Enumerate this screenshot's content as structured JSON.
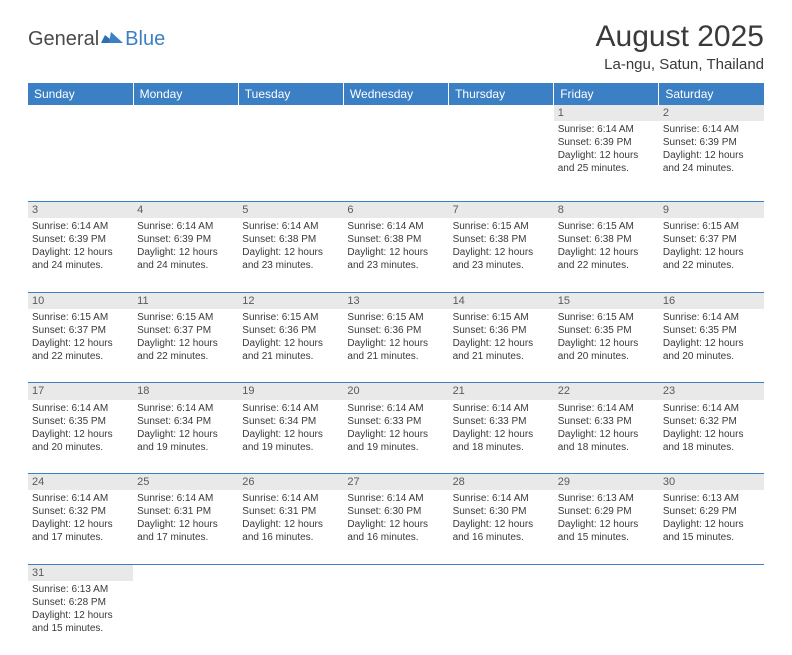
{
  "logo": {
    "general": "General",
    "blue": "Blue"
  },
  "title": "August 2025",
  "subtitle": "La-ngu, Satun, Thailand",
  "weekdays": [
    "Sunday",
    "Monday",
    "Tuesday",
    "Wednesday",
    "Thursday",
    "Friday",
    "Saturday"
  ],
  "weeks": [
    {
      "nums": [
        "",
        "",
        "",
        "",
        "",
        "1",
        "2"
      ],
      "cells": [
        null,
        null,
        null,
        null,
        null,
        {
          "sr": "Sunrise: 6:14 AM",
          "ss": "Sunset: 6:39 PM",
          "d1": "Daylight: 12 hours",
          "d2": "and 25 minutes."
        },
        {
          "sr": "Sunrise: 6:14 AM",
          "ss": "Sunset: 6:39 PM",
          "d1": "Daylight: 12 hours",
          "d2": "and 24 minutes."
        }
      ]
    },
    {
      "nums": [
        "3",
        "4",
        "5",
        "6",
        "7",
        "8",
        "9"
      ],
      "cells": [
        {
          "sr": "Sunrise: 6:14 AM",
          "ss": "Sunset: 6:39 PM",
          "d1": "Daylight: 12 hours",
          "d2": "and 24 minutes."
        },
        {
          "sr": "Sunrise: 6:14 AM",
          "ss": "Sunset: 6:39 PM",
          "d1": "Daylight: 12 hours",
          "d2": "and 24 minutes."
        },
        {
          "sr": "Sunrise: 6:14 AM",
          "ss": "Sunset: 6:38 PM",
          "d1": "Daylight: 12 hours",
          "d2": "and 23 minutes."
        },
        {
          "sr": "Sunrise: 6:14 AM",
          "ss": "Sunset: 6:38 PM",
          "d1": "Daylight: 12 hours",
          "d2": "and 23 minutes."
        },
        {
          "sr": "Sunrise: 6:15 AM",
          "ss": "Sunset: 6:38 PM",
          "d1": "Daylight: 12 hours",
          "d2": "and 23 minutes."
        },
        {
          "sr": "Sunrise: 6:15 AM",
          "ss": "Sunset: 6:38 PM",
          "d1": "Daylight: 12 hours",
          "d2": "and 22 minutes."
        },
        {
          "sr": "Sunrise: 6:15 AM",
          "ss": "Sunset: 6:37 PM",
          "d1": "Daylight: 12 hours",
          "d2": "and 22 minutes."
        }
      ]
    },
    {
      "nums": [
        "10",
        "11",
        "12",
        "13",
        "14",
        "15",
        "16"
      ],
      "cells": [
        {
          "sr": "Sunrise: 6:15 AM",
          "ss": "Sunset: 6:37 PM",
          "d1": "Daylight: 12 hours",
          "d2": "and 22 minutes."
        },
        {
          "sr": "Sunrise: 6:15 AM",
          "ss": "Sunset: 6:37 PM",
          "d1": "Daylight: 12 hours",
          "d2": "and 22 minutes."
        },
        {
          "sr": "Sunrise: 6:15 AM",
          "ss": "Sunset: 6:36 PM",
          "d1": "Daylight: 12 hours",
          "d2": "and 21 minutes."
        },
        {
          "sr": "Sunrise: 6:15 AM",
          "ss": "Sunset: 6:36 PM",
          "d1": "Daylight: 12 hours",
          "d2": "and 21 minutes."
        },
        {
          "sr": "Sunrise: 6:15 AM",
          "ss": "Sunset: 6:36 PM",
          "d1": "Daylight: 12 hours",
          "d2": "and 21 minutes."
        },
        {
          "sr": "Sunrise: 6:15 AM",
          "ss": "Sunset: 6:35 PM",
          "d1": "Daylight: 12 hours",
          "d2": "and 20 minutes."
        },
        {
          "sr": "Sunrise: 6:14 AM",
          "ss": "Sunset: 6:35 PM",
          "d1": "Daylight: 12 hours",
          "d2": "and 20 minutes."
        }
      ]
    },
    {
      "nums": [
        "17",
        "18",
        "19",
        "20",
        "21",
        "22",
        "23"
      ],
      "cells": [
        {
          "sr": "Sunrise: 6:14 AM",
          "ss": "Sunset: 6:35 PM",
          "d1": "Daylight: 12 hours",
          "d2": "and 20 minutes."
        },
        {
          "sr": "Sunrise: 6:14 AM",
          "ss": "Sunset: 6:34 PM",
          "d1": "Daylight: 12 hours",
          "d2": "and 19 minutes."
        },
        {
          "sr": "Sunrise: 6:14 AM",
          "ss": "Sunset: 6:34 PM",
          "d1": "Daylight: 12 hours",
          "d2": "and 19 minutes."
        },
        {
          "sr": "Sunrise: 6:14 AM",
          "ss": "Sunset: 6:33 PM",
          "d1": "Daylight: 12 hours",
          "d2": "and 19 minutes."
        },
        {
          "sr": "Sunrise: 6:14 AM",
          "ss": "Sunset: 6:33 PM",
          "d1": "Daylight: 12 hours",
          "d2": "and 18 minutes."
        },
        {
          "sr": "Sunrise: 6:14 AM",
          "ss": "Sunset: 6:33 PM",
          "d1": "Daylight: 12 hours",
          "d2": "and 18 minutes."
        },
        {
          "sr": "Sunrise: 6:14 AM",
          "ss": "Sunset: 6:32 PM",
          "d1": "Daylight: 12 hours",
          "d2": "and 18 minutes."
        }
      ]
    },
    {
      "nums": [
        "24",
        "25",
        "26",
        "27",
        "28",
        "29",
        "30"
      ],
      "cells": [
        {
          "sr": "Sunrise: 6:14 AM",
          "ss": "Sunset: 6:32 PM",
          "d1": "Daylight: 12 hours",
          "d2": "and 17 minutes."
        },
        {
          "sr": "Sunrise: 6:14 AM",
          "ss": "Sunset: 6:31 PM",
          "d1": "Daylight: 12 hours",
          "d2": "and 17 minutes."
        },
        {
          "sr": "Sunrise: 6:14 AM",
          "ss": "Sunset: 6:31 PM",
          "d1": "Daylight: 12 hours",
          "d2": "and 16 minutes."
        },
        {
          "sr": "Sunrise: 6:14 AM",
          "ss": "Sunset: 6:30 PM",
          "d1": "Daylight: 12 hours",
          "d2": "and 16 minutes."
        },
        {
          "sr": "Sunrise: 6:14 AM",
          "ss": "Sunset: 6:30 PM",
          "d1": "Daylight: 12 hours",
          "d2": "and 16 minutes."
        },
        {
          "sr": "Sunrise: 6:13 AM",
          "ss": "Sunset: 6:29 PM",
          "d1": "Daylight: 12 hours",
          "d2": "and 15 minutes."
        },
        {
          "sr": "Sunrise: 6:13 AM",
          "ss": "Sunset: 6:29 PM",
          "d1": "Daylight: 12 hours",
          "d2": "and 15 minutes."
        }
      ]
    },
    {
      "nums": [
        "31",
        "",
        "",
        "",
        "",
        "",
        ""
      ],
      "cells": [
        {
          "sr": "Sunrise: 6:13 AM",
          "ss": "Sunset: 6:28 PM",
          "d1": "Daylight: 12 hours",
          "d2": "and 15 minutes."
        },
        null,
        null,
        null,
        null,
        null,
        null
      ]
    }
  ],
  "colors": {
    "header_bg": "#3b7fc4",
    "daynum_bg": "#e9e9e9",
    "border": "#3b7fc4",
    "text": "#3a3a3a"
  }
}
